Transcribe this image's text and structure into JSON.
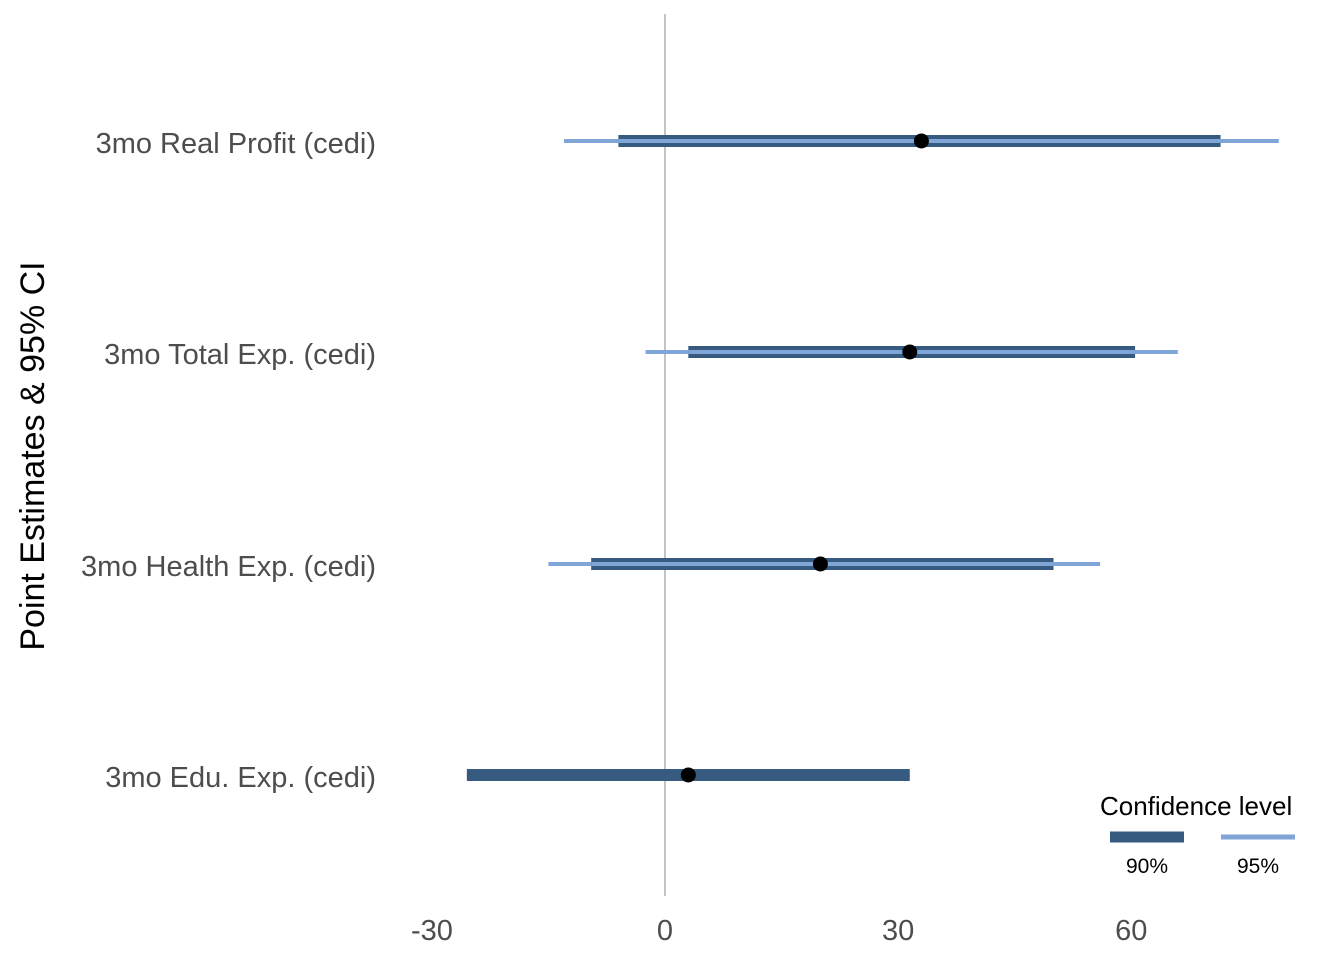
{
  "chart_data": {
    "type": "coefficient-plot",
    "ylabel": "Point Estimates & 95% CI",
    "xticks": [
      -30,
      0,
      30,
      60
    ],
    "xlim": [
      -60,
      84
    ],
    "reference_line_x": 0,
    "grid": false,
    "legend": {
      "title": "Confidence level",
      "position": "bottom-right",
      "entries": [
        {
          "label": "90%",
          "color": "#375a80"
        },
        {
          "label": "95%",
          "color": "#7fa6d6"
        }
      ]
    },
    "point_color": "#000000",
    "categories": [
      "3mo Real Profit (cedi)",
      "3mo Total Exp. (cedi)",
      "3mo Health Exp. (cedi)",
      "3mo Edu. Exp. (cedi)"
    ],
    "series": [
      {
        "category": "3mo Real Profit (cedi)",
        "estimate": 33,
        "ci90": [
          -6,
          71.5
        ],
        "ci95": [
          -13,
          79
        ]
      },
      {
        "category": "3mo Total Exp. (cedi)",
        "estimate": 31.5,
        "ci90": [
          3,
          60.5
        ],
        "ci95": [
          -2.5,
          66
        ]
      },
      {
        "category": "3mo Health Exp. (cedi)",
        "estimate": 20,
        "ci90": [
          -9.5,
          50
        ],
        "ci95": [
          -15,
          56
        ]
      },
      {
        "category": "3mo Edu. Exp. (cedi)",
        "estimate": 3,
        "ci90": [
          -25.5,
          31.5
        ],
        "ci95": [
          -25.5,
          31.5
        ]
      }
    ]
  }
}
